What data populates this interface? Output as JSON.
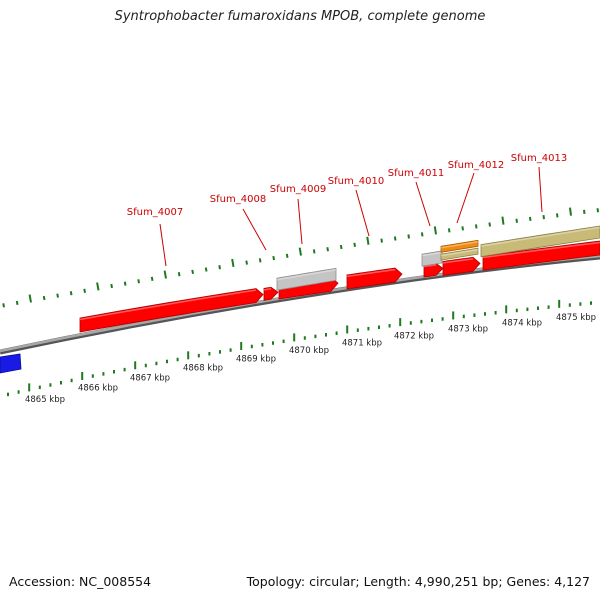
{
  "title": "Syntrophobacter fumaroxidans MPOB, complete genome",
  "footer": {
    "accession": "Accession: NC_008554",
    "topology": "Topology: circular; Length: 4,990,251 bp; Genes: 4,127"
  },
  "colors": {
    "cds": "#ff0000",
    "cds_dark": "#b00000",
    "gray": "#c4c4c4",
    "khaki": "#c8bb78",
    "orange": "#f08a10",
    "blue": "#1a1ae6",
    "backbone": "#8a8a8a",
    "tick": "#1f7a1f",
    "gene_label": "#cc0000"
  },
  "genes": [
    {
      "name": "Sfum_4007"
    },
    {
      "name": "Sfum_4008"
    },
    {
      "name": "Sfum_4009"
    },
    {
      "name": "Sfum_4010"
    },
    {
      "name": "Sfum_4011"
    },
    {
      "name": "Sfum_4012"
    },
    {
      "name": "Sfum_4013"
    }
  ],
  "scale": {
    "labels": [
      "4865 kbp",
      "4866 kbp",
      "4867 kbp",
      "4868 kbp",
      "4869 kbp",
      "4870 kbp",
      "4871 kbp",
      "4872 kbp",
      "4873 kbp",
      "4874 kbp",
      "4875 kbp"
    ]
  }
}
